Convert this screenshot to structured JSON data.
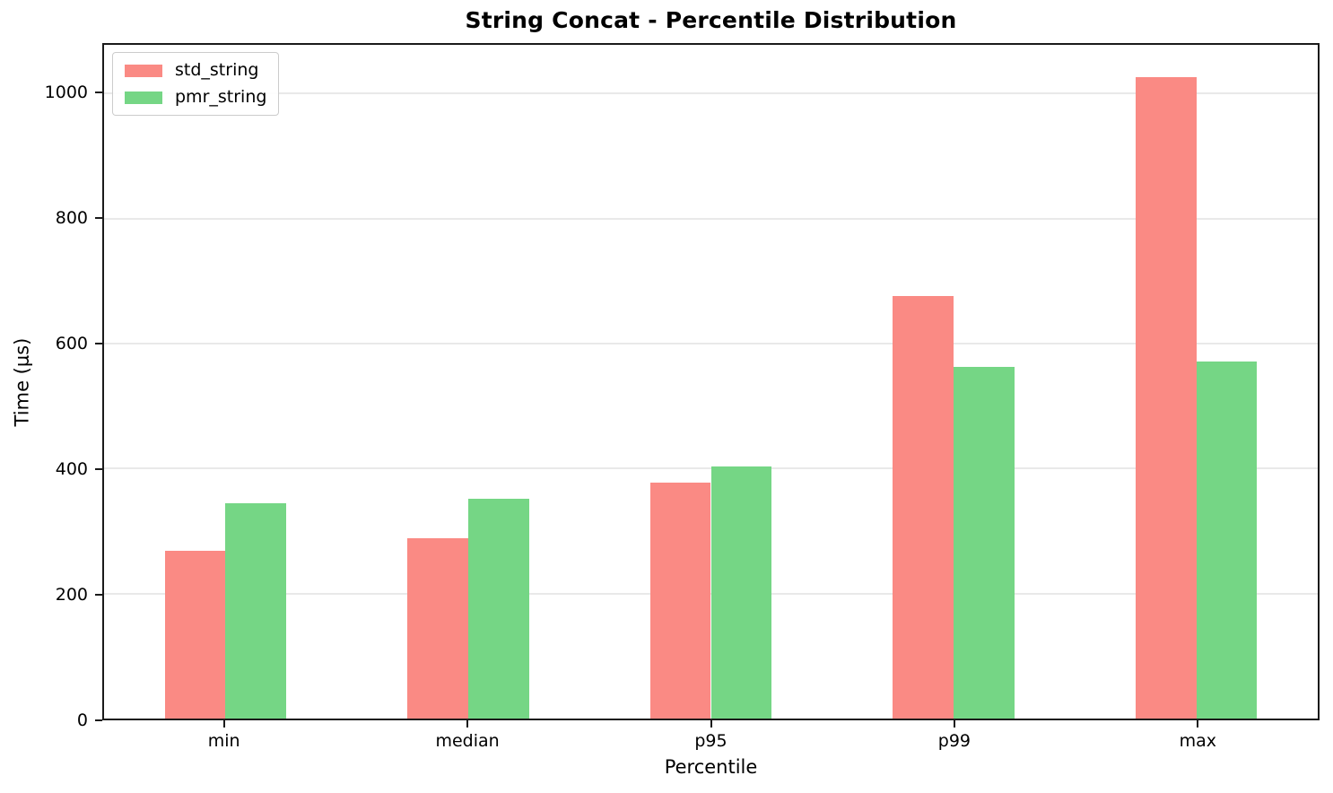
{
  "figure": {
    "background": "#ffffff",
    "axis_color": "#1a1a1a",
    "grid_color": "#e9e9e9",
    "legend_border_color": "#cccccc"
  },
  "chart_data": {
    "type": "bar",
    "title": "String Concat - Percentile Distribution",
    "xlabel": "Percentile",
    "ylabel": "Time (μs)",
    "categories": [
      "min",
      "median",
      "p95",
      "p99",
      "max"
    ],
    "series": [
      {
        "name": "std_string",
        "color": "#fa8a84",
        "values": [
          268,
          288,
          378,
          676,
          1027
        ]
      },
      {
        "name": "pmr_string",
        "color": "#75d685",
        "values": [
          344,
          351,
          404,
          563,
          571
        ]
      }
    ],
    "ylim": [
      0,
      1078
    ],
    "yticks": [
      0,
      200,
      400,
      600,
      800,
      1000
    ],
    "grid": "horizontal",
    "legend_position": "upper-left",
    "bar_width_fraction": 0.25
  }
}
